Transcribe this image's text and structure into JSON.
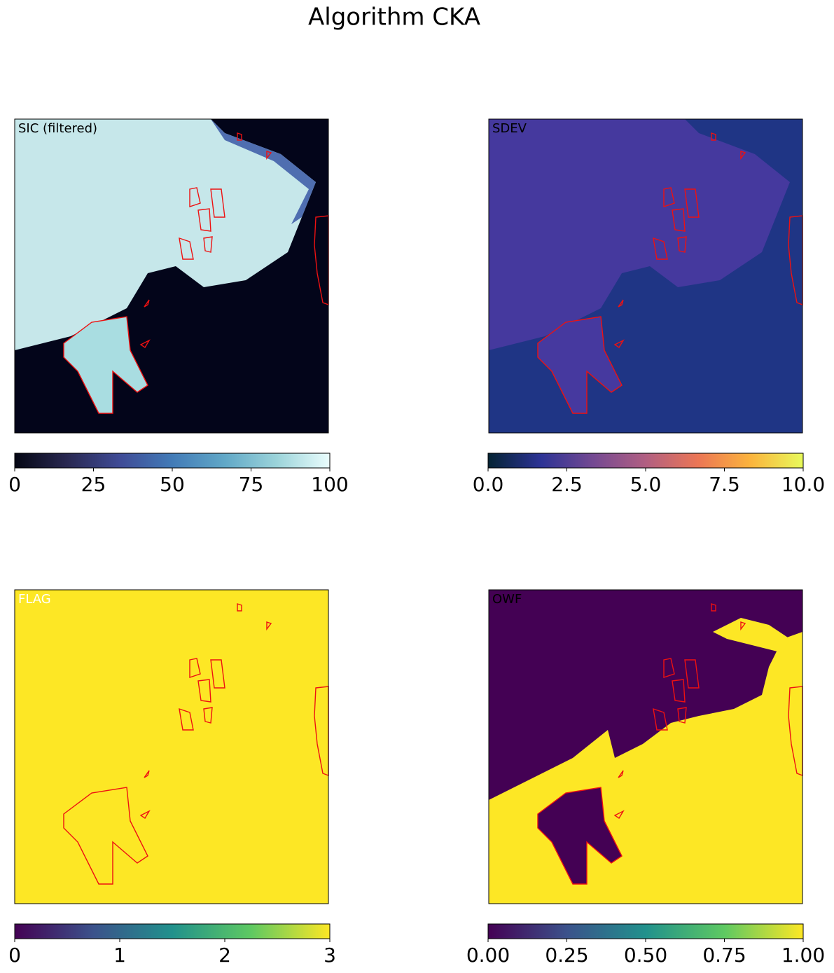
{
  "title": "Algorithm CKA",
  "chart_data": [
    {
      "type": "heatmap",
      "label": "SIC (filtered)",
      "label_color": "#000000",
      "colormap": [
        "#040613",
        "#292851",
        "#3f4b96",
        "#427bb7",
        "#61a8c7",
        "#9cd4da",
        "#eafdfd"
      ],
      "xlim": [
        0,
        100
      ],
      "xticks": [
        0,
        25,
        50,
        75,
        100
      ]
    },
    {
      "type": "heatmap",
      "label": "SDEV",
      "label_color": "#000000",
      "colormap": [
        "#042333",
        "#2c3395",
        "#744992",
        "#b15f82",
        "#eb7655",
        "#fbb43d",
        "#e8fa5b"
      ],
      "xlim": [
        0,
        10
      ],
      "xticks": [
        {
          "value": 0,
          "label": "0.0"
        },
        {
          "value": 2.5,
          "label": "2.5"
        },
        {
          "value": 5,
          "label": "5.0"
        },
        {
          "value": 7.5,
          "label": "7.5"
        },
        {
          "value": 10,
          "label": "10.0"
        }
      ]
    },
    {
      "type": "heatmap",
      "label": "FLAG",
      "label_color": "#ffffff",
      "colormap": [
        "#440154",
        "#3b528b",
        "#21918c",
        "#5ec962",
        "#fde725"
      ],
      "xlim": [
        0,
        3
      ],
      "xticks": [
        0,
        1,
        2,
        3
      ]
    },
    {
      "type": "heatmap",
      "label": "OWF",
      "label_color": "#000000",
      "colormap": [
        "#440154",
        "#3b528b",
        "#21918c",
        "#5ec962",
        "#fde725"
      ],
      "xlim": [
        0,
        1
      ],
      "xticks": [
        {
          "value": 0,
          "label": "0.00"
        },
        {
          "value": 0.25,
          "label": "0.25"
        },
        {
          "value": 0.5,
          "label": "0.50"
        },
        {
          "value": 0.75,
          "label": "0.75"
        },
        {
          "value": 1,
          "label": "1.00"
        }
      ]
    }
  ]
}
